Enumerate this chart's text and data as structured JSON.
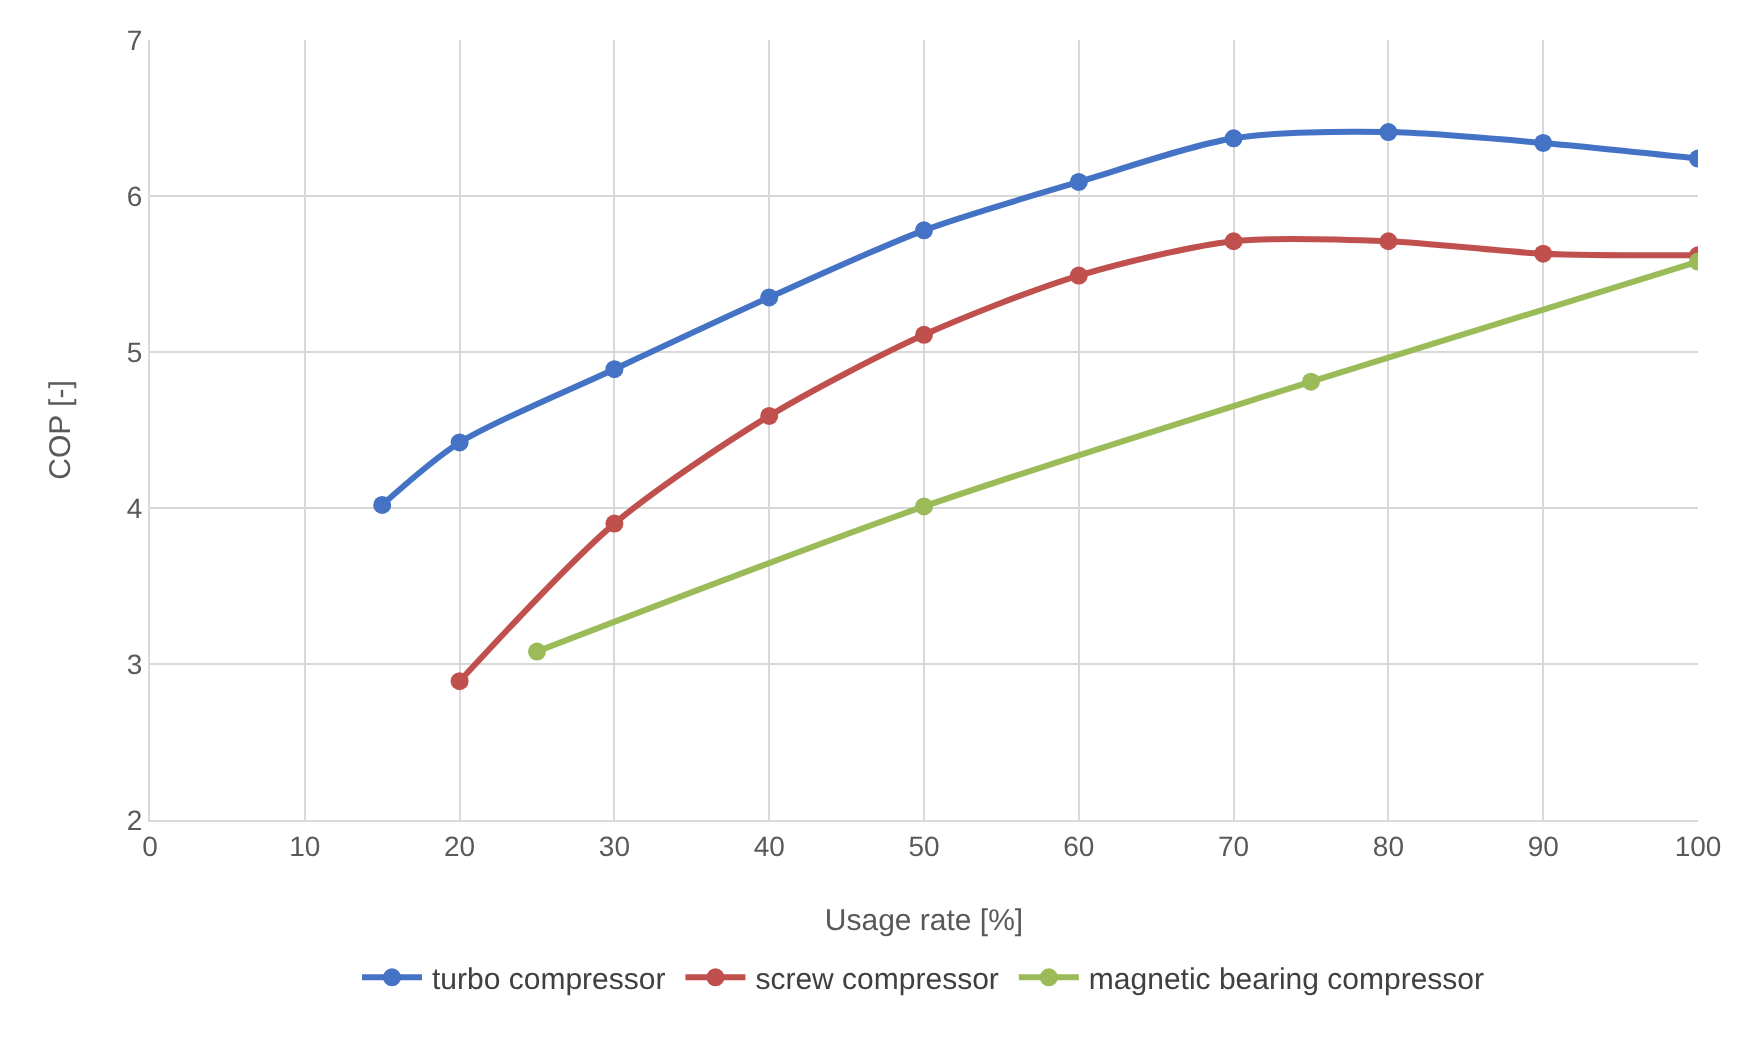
{
  "chart_data": {
    "type": "line",
    "xlabel": "Usage rate [%]",
    "ylabel": "COP [-]",
    "xlim": [
      0,
      100
    ],
    "xticks": [
      0,
      10,
      20,
      30,
      40,
      50,
      60,
      70,
      80,
      90,
      100
    ],
    "ylim": [
      2,
      7
    ],
    "yticks": [
      2,
      3,
      4,
      5,
      6,
      7
    ],
    "grid": true,
    "legend": "bottom",
    "marker": "circle",
    "line_style": "solid",
    "series": [
      {
        "name": "turbo compressor",
        "color": "#4472c4",
        "x": [
          15,
          20,
          30,
          40,
          50,
          60,
          70,
          80,
          90,
          100
        ],
        "values": [
          4.02,
          4.42,
          4.89,
          5.35,
          5.78,
          6.09,
          6.37,
          6.41,
          6.34,
          6.24
        ]
      },
      {
        "name": "screw compressor",
        "color": "#c0504d",
        "x": [
          20,
          30,
          40,
          50,
          60,
          70,
          80,
          90,
          100
        ],
        "values": [
          2.89,
          3.9,
          4.59,
          5.11,
          5.49,
          5.71,
          5.71,
          5.63,
          5.62
        ]
      },
      {
        "name": "magnetic bearing compressor",
        "color": "#9bbb59",
        "x": [
          25,
          50,
          75,
          100
        ],
        "values": [
          3.08,
          4.01,
          4.81,
          5.58
        ]
      }
    ]
  }
}
